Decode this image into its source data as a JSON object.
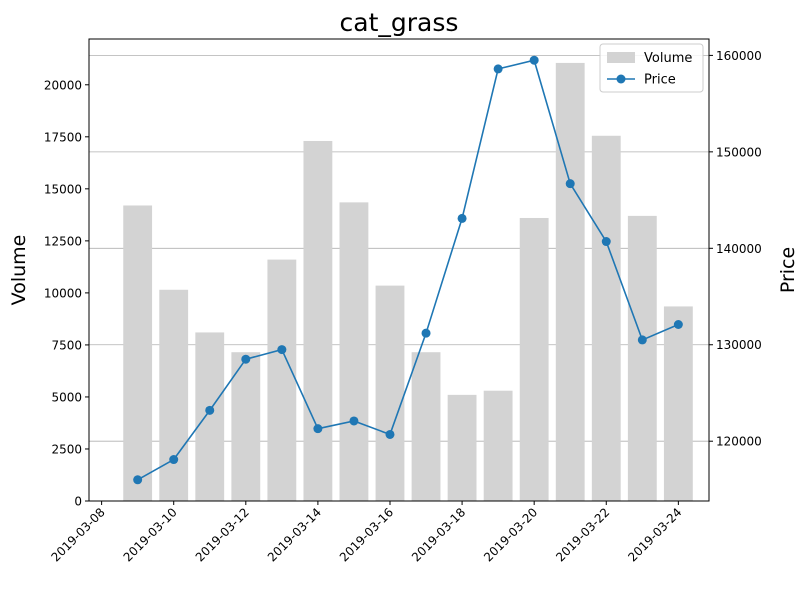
{
  "chart_data": {
    "type": "bar+line",
    "title": "cat_grass",
    "xlabel": "",
    "ylabel_left": "Volume",
    "ylabel_right": "Price",
    "x_ticks": [
      "2019-03-08",
      "2019-03-10",
      "2019-03-12",
      "2019-03-14",
      "2019-03-16",
      "2019-03-18",
      "2019-03-20",
      "2019-03-22",
      "2019-03-24"
    ],
    "x": [
      "2019-03-09",
      "2019-03-10",
      "2019-03-11",
      "2019-03-12",
      "2019-03-13",
      "2019-03-14",
      "2019-03-15",
      "2019-03-16",
      "2019-03-17",
      "2019-03-18",
      "2019-03-19",
      "2019-03-20",
      "2019-03-21",
      "2019-03-22",
      "2019-03-23",
      "2019-03-24"
    ],
    "xlim": [
      "2019-03-07 15:36",
      "2019-03-24 20:24"
    ],
    "series": [
      {
        "name": "Volume",
        "type": "bar",
        "axis": "left",
        "color": "#d3d3d3",
        "values": [
          14200,
          10150,
          8100,
          7150,
          11600,
          17300,
          14350,
          10350,
          7150,
          5100,
          5300,
          13600,
          21050,
          17550,
          13700,
          9350
        ]
      },
      {
        "name": "Price",
        "type": "line",
        "axis": "right",
        "color": "#1f77b4",
        "values": [
          116000,
          118100,
          123200,
          128500,
          129500,
          121300,
          122100,
          120700,
          131200,
          143100,
          158600,
          159500,
          146700,
          140700,
          130500,
          132100
        ]
      }
    ],
    "ylim_left": [
      0,
      22200
    ],
    "yticks_left": [
      0,
      2500,
      5000,
      7500,
      10000,
      12500,
      15000,
      17500,
      20000
    ],
    "ylim_right": [
      113800,
      161700
    ],
    "yticks_right": [
      120000,
      130000,
      140000,
      150000,
      160000
    ],
    "grid": "horizontal, right axis",
    "legend_position": "top-right"
  }
}
